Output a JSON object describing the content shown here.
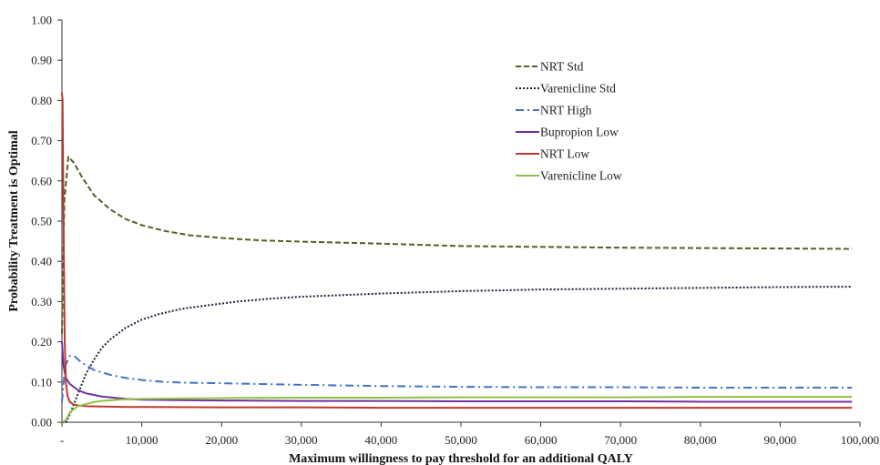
{
  "chart_data": {
    "type": "line",
    "title": "",
    "xlabel": "Maximum willingness to pay threshold for an additional QALY",
    "ylabel": "Probability Treatment is Optimal",
    "xlim": [
      0,
      100000
    ],
    "ylim": [
      0,
      1.0
    ],
    "grid": false,
    "legend_position": "top-right",
    "x_ticks": [
      0,
      10000,
      20000,
      30000,
      40000,
      50000,
      60000,
      70000,
      80000,
      90000,
      100000
    ],
    "x_tick_labels": [
      "-",
      "10,000",
      "20,000",
      "30,000",
      "40,000",
      "50,000",
      "60,000",
      "70,000",
      "80,000",
      "90,000",
      "100,000"
    ],
    "y_ticks": [
      0,
      0.1,
      0.2,
      0.3,
      0.4,
      0.5,
      0.6,
      0.7,
      0.8,
      0.9,
      1.0
    ],
    "y_tick_labels": [
      "0.00",
      "0.10",
      "0.20",
      "0.30",
      "0.40",
      "0.50",
      "0.60",
      "0.70",
      "0.80",
      "0.90",
      "1.00"
    ],
    "series": [
      {
        "name": "NRT Std",
        "color": "#4f6228",
        "dash": "6,3",
        "x": [
          0,
          300,
          800,
          1500,
          2500,
          4000,
          6000,
          8000,
          10000,
          13000,
          16000,
          20000,
          25000,
          30000,
          40000,
          50000,
          60000,
          70000,
          80000,
          90000,
          99000
        ],
        "y": [
          0.22,
          0.55,
          0.66,
          0.645,
          0.61,
          0.565,
          0.53,
          0.505,
          0.49,
          0.475,
          0.465,
          0.458,
          0.452,
          0.449,
          0.444,
          0.438,
          0.436,
          0.434,
          0.433,
          0.432,
          0.431
        ]
      },
      {
        "name": "Varenicline Std",
        "color": "#1f1f3a",
        "dash": "2,2",
        "x": [
          0,
          500,
          1000,
          2000,
          3000,
          4000,
          5000,
          6000,
          8000,
          10000,
          12000,
          15000,
          18000,
          22000,
          26000,
          30000,
          40000,
          50000,
          60000,
          70000,
          80000,
          90000,
          99000
        ],
        "y": [
          0.0,
          0.0,
          0.02,
          0.07,
          0.12,
          0.155,
          0.185,
          0.205,
          0.235,
          0.255,
          0.268,
          0.282,
          0.29,
          0.3,
          0.307,
          0.312,
          0.32,
          0.326,
          0.33,
          0.332,
          0.334,
          0.336,
          0.337
        ]
      },
      {
        "name": "NRT High",
        "color": "#4472c4",
        "dash": "9,4,2,4",
        "x": [
          0,
          400,
          1000,
          1500,
          2500,
          4000,
          6000,
          8000,
          10000,
          13000,
          16000,
          20000,
          25000,
          30000,
          40000,
          50000,
          60000,
          70000,
          80000,
          90000,
          99000
        ],
        "y": [
          0.05,
          0.14,
          0.165,
          0.165,
          0.148,
          0.13,
          0.118,
          0.11,
          0.105,
          0.1,
          0.098,
          0.097,
          0.095,
          0.093,
          0.09,
          0.088,
          0.087,
          0.087,
          0.086,
          0.086,
          0.086
        ]
      },
      {
        "name": "Bupropion Low",
        "color": "#7030a0",
        "dash": "",
        "x": [
          0,
          200,
          500,
          1000,
          2000,
          3000,
          5000,
          8000,
          10000,
          15000,
          20000,
          30000,
          40000,
          50000,
          60000,
          70000,
          80000,
          90000,
          99000
        ],
        "y": [
          0.2,
          0.14,
          0.11,
          0.095,
          0.08,
          0.072,
          0.064,
          0.058,
          0.056,
          0.055,
          0.054,
          0.053,
          0.053,
          0.052,
          0.052,
          0.052,
          0.051,
          0.051,
          0.051
        ]
      },
      {
        "name": "NRT Low",
        "color": "#c0392b",
        "dash": "",
        "x": [
          0,
          80,
          200,
          350,
          500,
          700,
          1000,
          1500,
          2000,
          3000,
          5000,
          8000,
          10000,
          20000,
          30000,
          40000,
          50000,
          60000,
          70000,
          80000,
          90000,
          99000
        ],
        "y": [
          0.82,
          0.8,
          0.5,
          0.2,
          0.1,
          0.065,
          0.05,
          0.044,
          0.042,
          0.04,
          0.039,
          0.038,
          0.038,
          0.037,
          0.037,
          0.036,
          0.036,
          0.036,
          0.036,
          0.036,
          0.036,
          0.036
        ]
      },
      {
        "name": "Varenicline Low",
        "color": "#92c045",
        "dash": "",
        "x": [
          0,
          500,
          1000,
          2000,
          3000,
          4000,
          5000,
          7000,
          10000,
          15000,
          20000,
          30000,
          40000,
          50000,
          60000,
          70000,
          80000,
          90000,
          99000
        ],
        "y": [
          0.0,
          0.005,
          0.025,
          0.04,
          0.045,
          0.05,
          0.053,
          0.056,
          0.058,
          0.059,
          0.06,
          0.061,
          0.061,
          0.062,
          0.062,
          0.062,
          0.063,
          0.063,
          0.063
        ]
      }
    ]
  }
}
